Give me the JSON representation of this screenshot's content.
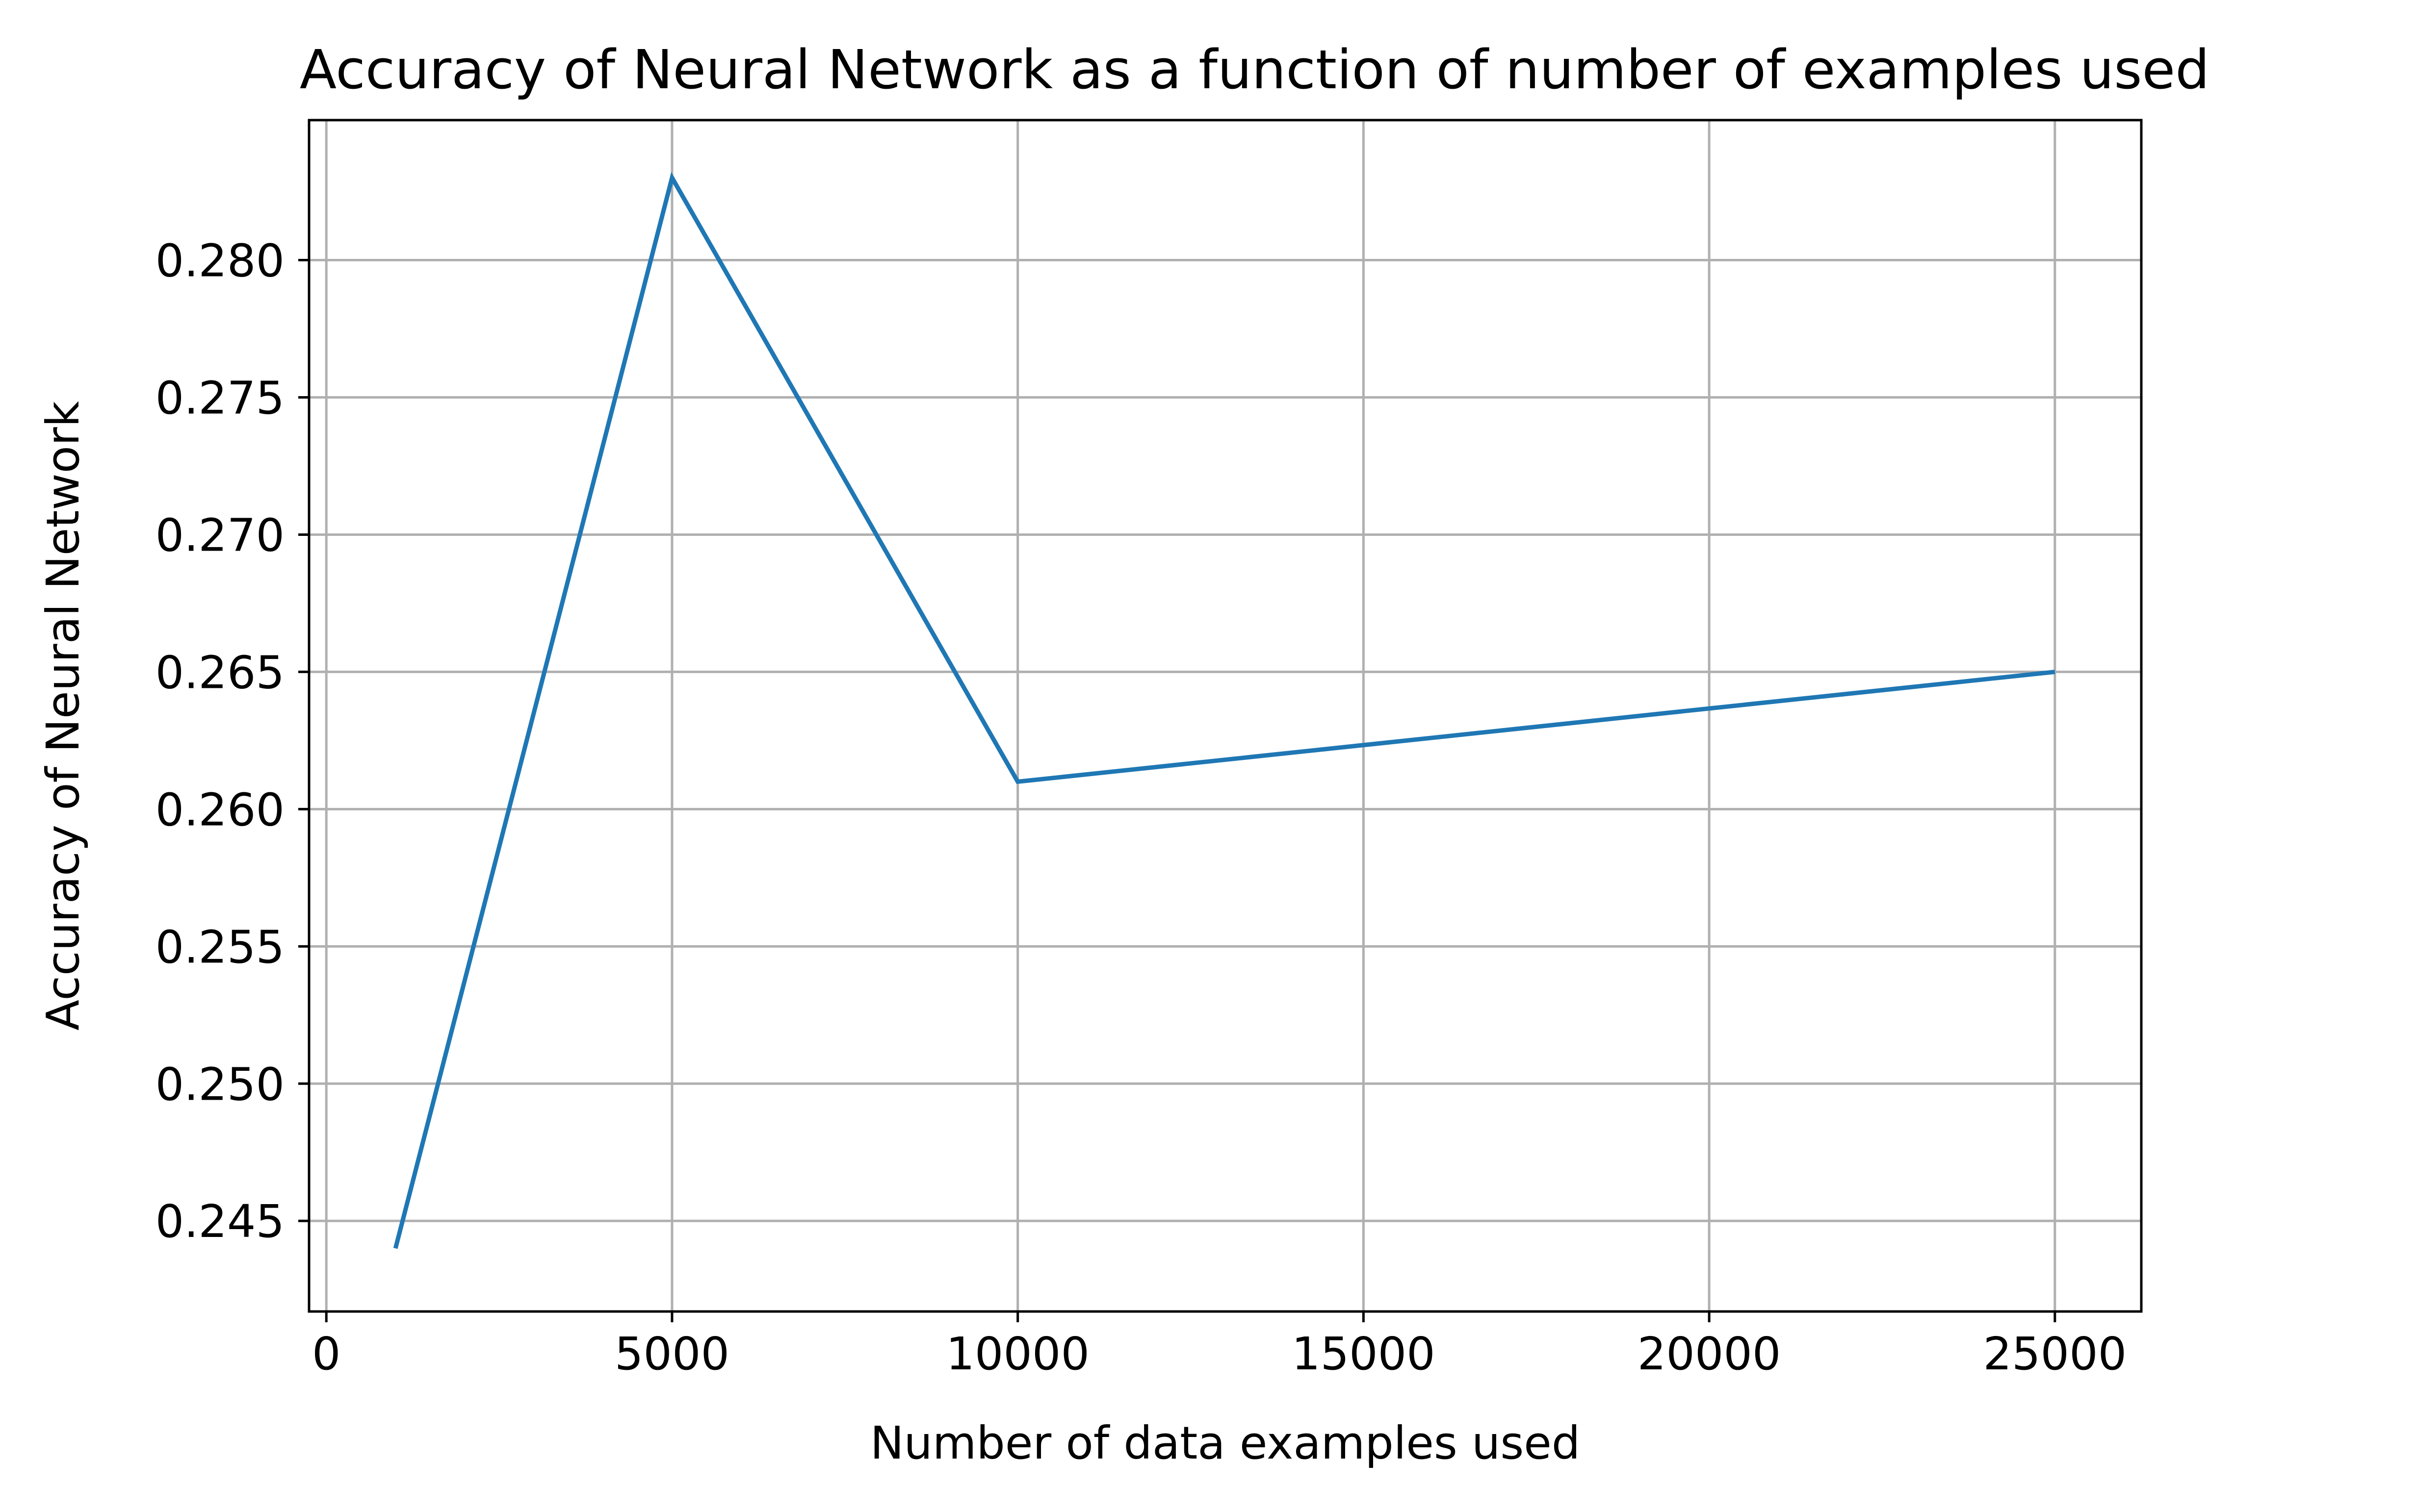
{
  "chart_data": {
    "type": "line",
    "title": "Accuracy of Neural Network as a function of number of examples used",
    "xlabel": "Number of data examples used",
    "ylabel": "Accuracy of Neural Network",
    "xlim": [
      -250,
      26250
    ],
    "ylim": [
      0.2417,
      0.2851
    ],
    "x_ticks": [
      0,
      5000,
      10000,
      15000,
      20000,
      25000
    ],
    "x_tick_labels": [
      "0",
      "5000",
      "10000",
      "15000",
      "20000",
      "25000"
    ],
    "y_ticks": [
      0.245,
      0.25,
      0.255,
      0.26,
      0.265,
      0.27,
      0.275,
      0.28
    ],
    "y_tick_labels": [
      "0.245",
      "0.250",
      "0.255",
      "0.260",
      "0.265",
      "0.270",
      "0.275",
      "0.280"
    ],
    "grid": true,
    "series": [
      {
        "color": "#1f77b4",
        "x": [
          1000,
          5000,
          10000,
          25000
        ],
        "y": [
          0.244,
          0.283,
          0.261,
          0.265
        ]
      }
    ]
  }
}
